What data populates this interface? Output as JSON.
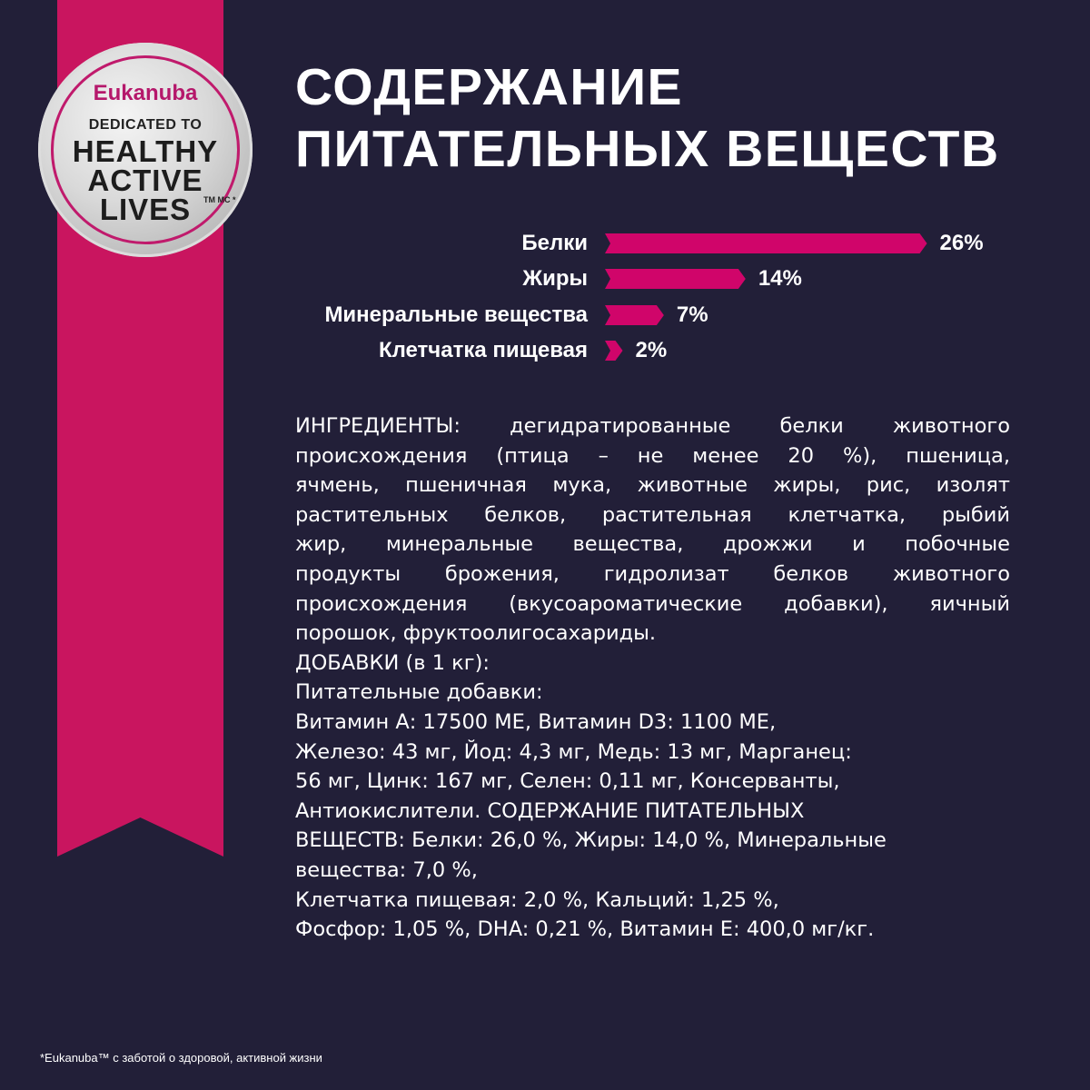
{
  "badge": {
    "brand": "Eukanuba",
    "line1": "DEDICATED TO",
    "line2": "HEALTHY",
    "line3": "ACTIVE",
    "line4": "LIVES",
    "tm": "TM MC *"
  },
  "title": {
    "line1": "СОДЕРЖАНИЕ",
    "line2": "ПИТАТЕЛЬНЫХ ВЕЩЕСТВ"
  },
  "colors": {
    "background": "#221f38",
    "accent": "#c9155f",
    "bar": "#d0056a"
  },
  "nutrients": [
    {
      "label": "Белки",
      "value": 26,
      "display": "26%"
    },
    {
      "label": "Жиры",
      "value": 14,
      "display": "14%"
    },
    {
      "label": "Минеральные вещества",
      "value": 7,
      "display": "7%"
    },
    {
      "label": "Клетчатка пищевая",
      "value": 2,
      "display": "2%"
    }
  ],
  "ingredients": [
    "ИНГРЕДИЕНТЫ: дегидратированные белки животного",
    "происхождения (птица – не менее 20 %), пшеница,",
    "ячмень, пшеничная мука, животные жиры, рис, изолят",
    "растительных белков, растительная клетчатка, рыбий",
    "жир, минеральные вещества, дрожжи и побочные",
    "продукты брожения, гидролизат белков животного",
    "происхождения (вкусоароматические добавки), яичный",
    "порошок, фруктоолигосахариды.",
    "ДОБАВКИ (в 1 кг):",
    "Питательные добавки:",
    "Витамин А: 17500 МЕ, Витамин D3: 1100 МЕ,",
    "Железо: 43 мг, Йод: 4,3 мг, Медь: 13 мг, Марганец:",
    "56 мг, Цинк: 167 мг, Селен: 0,11 мг, Консерванты,",
    "Антиокислители. СОДЕРЖАНИЕ ПИТАТЕЛЬНЫХ",
    "ВЕЩЕСТВ: Белки: 26,0 %, Жиры: 14,0 %, Минеральные",
    "вещества: 7,0 %,",
    "Клетчатка пищевая: 2,0 %, Кальций: 1,25 %,",
    "Фосфор: 1,05 %, DHA: 0,21 %, Витамин Е: 400,0 мг/кг."
  ],
  "footnote": "*Eukanuba™ с заботой о здоровой, активной жизни"
}
